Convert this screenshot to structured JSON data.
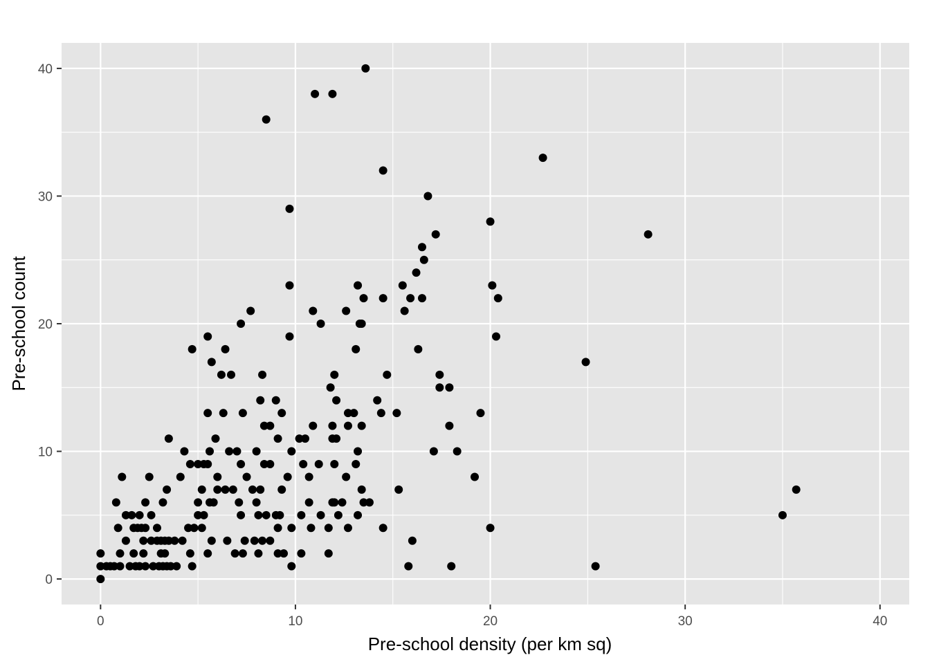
{
  "chart_data": {
    "type": "scatter",
    "xlabel": "Pre-school density (per km sq)",
    "ylabel": "Pre-school count",
    "xlim": [
      -2,
      41.5
    ],
    "ylim": [
      -2,
      42
    ],
    "x_ticks": [
      0,
      10,
      20,
      30,
      40
    ],
    "y_ticks": [
      0,
      10,
      20,
      30,
      40
    ],
    "x_tick_labels": [
      "0",
      "10",
      "20",
      "30",
      "40"
    ],
    "y_tick_labels": [
      "0",
      "10",
      "20",
      "30",
      "40"
    ],
    "grid": true,
    "legend": "none",
    "colors": {
      "panel": "#e5e5e5",
      "grid": "#ffffff",
      "point": "#000000"
    },
    "points": [
      [
        0,
        0
      ],
      [
        0,
        1
      ],
      [
        0,
        2
      ],
      [
        0.3,
        1
      ],
      [
        0.5,
        1
      ],
      [
        0.7,
        1
      ],
      [
        0.8,
        6
      ],
      [
        0.9,
        4
      ],
      [
        1,
        2
      ],
      [
        1,
        1
      ],
      [
        1.1,
        8
      ],
      [
        1.3,
        5
      ],
      [
        1.3,
        3
      ],
      [
        1.5,
        1
      ],
      [
        1.6,
        5
      ],
      [
        1.7,
        2
      ],
      [
        1.7,
        4
      ],
      [
        1.8,
        1
      ],
      [
        1.9,
        4
      ],
      [
        2,
        5
      ],
      [
        2,
        1
      ],
      [
        2.1,
        4
      ],
      [
        2.2,
        2
      ],
      [
        2.2,
        3
      ],
      [
        2.3,
        4
      ],
      [
        2.3,
        1
      ],
      [
        2.3,
        6
      ],
      [
        2.5,
        8
      ],
      [
        2.6,
        3
      ],
      [
        2.6,
        5
      ],
      [
        2.7,
        1
      ],
      [
        2.9,
        3
      ],
      [
        2.9,
        4
      ],
      [
        3,
        1
      ],
      [
        3.1,
        2
      ],
      [
        3.1,
        3
      ],
      [
        3.2,
        1
      ],
      [
        3.2,
        6
      ],
      [
        3.3,
        3
      ],
      [
        3.3,
        2
      ],
      [
        3.4,
        1
      ],
      [
        3.4,
        7
      ],
      [
        3.5,
        11
      ],
      [
        3.5,
        3
      ],
      [
        3.6,
        1
      ],
      [
        3.8,
        3
      ],
      [
        3.9,
        1
      ],
      [
        4.1,
        8
      ],
      [
        4.2,
        3
      ],
      [
        4.3,
        10
      ],
      [
        4.5,
        4
      ],
      [
        4.6,
        2
      ],
      [
        4.6,
        9
      ],
      [
        4.7,
        18
      ],
      [
        4.7,
        1
      ],
      [
        4.8,
        4
      ],
      [
        5,
        5
      ],
      [
        5,
        6
      ],
      [
        5,
        9
      ],
      [
        5.2,
        4
      ],
      [
        5.2,
        7
      ],
      [
        5.3,
        9
      ],
      [
        5.3,
        5
      ],
      [
        5.5,
        2
      ],
      [
        5.5,
        19
      ],
      [
        5.5,
        13
      ],
      [
        5.5,
        9
      ],
      [
        5.6,
        10
      ],
      [
        5.6,
        6
      ],
      [
        5.7,
        17
      ],
      [
        5.7,
        3
      ],
      [
        5.8,
        6
      ],
      [
        5.9,
        11
      ],
      [
        6,
        8
      ],
      [
        6,
        7
      ],
      [
        6.2,
        16
      ],
      [
        6.3,
        13
      ],
      [
        6.4,
        7
      ],
      [
        6.4,
        18
      ],
      [
        6.5,
        3
      ],
      [
        6.6,
        10
      ],
      [
        6.7,
        16
      ],
      [
        6.8,
        7
      ],
      [
        6.9,
        2
      ],
      [
        7,
        10
      ],
      [
        7.1,
        6
      ],
      [
        7.2,
        9
      ],
      [
        7.2,
        5
      ],
      [
        7.2,
        20
      ],
      [
        7.3,
        2
      ],
      [
        7.3,
        13
      ],
      [
        7.4,
        3
      ],
      [
        7.5,
        8
      ],
      [
        7.7,
        21
      ],
      [
        7.8,
        7
      ],
      [
        7.9,
        3
      ],
      [
        8,
        10
      ],
      [
        8,
        6
      ],
      [
        8.1,
        5
      ],
      [
        8.1,
        2
      ],
      [
        8.2,
        14
      ],
      [
        8.2,
        7
      ],
      [
        8.3,
        16
      ],
      [
        8.3,
        3
      ],
      [
        8.4,
        12
      ],
      [
        8.4,
        9
      ],
      [
        8.5,
        5
      ],
      [
        8.5,
        36
      ],
      [
        8.7,
        3
      ],
      [
        8.7,
        9
      ],
      [
        8.7,
        12
      ],
      [
        9,
        14
      ],
      [
        9,
        5
      ],
      [
        9.1,
        11
      ],
      [
        9.1,
        2
      ],
      [
        9.1,
        4
      ],
      [
        9.2,
        5
      ],
      [
        9.3,
        7
      ],
      [
        9.3,
        13
      ],
      [
        9.4,
        2
      ],
      [
        9.6,
        8
      ],
      [
        9.7,
        23
      ],
      [
        9.7,
        29
      ],
      [
        9.7,
        19
      ],
      [
        9.8,
        4
      ],
      [
        9.8,
        1
      ],
      [
        9.8,
        10
      ],
      [
        10.2,
        11
      ],
      [
        10.3,
        5
      ],
      [
        10.3,
        2
      ],
      [
        10.4,
        9
      ],
      [
        10.5,
        11
      ],
      [
        10.7,
        8
      ],
      [
        10.7,
        6
      ],
      [
        10.8,
        4
      ],
      [
        10.9,
        21
      ],
      [
        10.9,
        12
      ],
      [
        11,
        38
      ],
      [
        11.2,
        9
      ],
      [
        11.3,
        5
      ],
      [
        11.3,
        20
      ],
      [
        11.7,
        2
      ],
      [
        11.7,
        4
      ],
      [
        11.8,
        15
      ],
      [
        11.9,
        6
      ],
      [
        11.9,
        12
      ],
      [
        11.9,
        11
      ],
      [
        11.9,
        38
      ],
      [
        12,
        9
      ],
      [
        12,
        6
      ],
      [
        12,
        16
      ],
      [
        12.1,
        14
      ],
      [
        12.1,
        11
      ],
      [
        12.2,
        5
      ],
      [
        12.4,
        6
      ],
      [
        12.6,
        8
      ],
      [
        12.6,
        21
      ],
      [
        12.7,
        13
      ],
      [
        12.7,
        12
      ],
      [
        12.7,
        4
      ],
      [
        13,
        13
      ],
      [
        13.1,
        18
      ],
      [
        13.1,
        9
      ],
      [
        13.2,
        5
      ],
      [
        13.2,
        23
      ],
      [
        13.2,
        10
      ],
      [
        13.3,
        20
      ],
      [
        13.4,
        20
      ],
      [
        13.4,
        12
      ],
      [
        13.4,
        7
      ],
      [
        13.5,
        22
      ],
      [
        13.5,
        6
      ],
      [
        13.6,
        40
      ],
      [
        13.8,
        6
      ],
      [
        14.2,
        14
      ],
      [
        14.4,
        13
      ],
      [
        14.5,
        4
      ],
      [
        14.5,
        22
      ],
      [
        14.5,
        32
      ],
      [
        14.7,
        16
      ],
      [
        15.2,
        13
      ],
      [
        15.3,
        7
      ],
      [
        15.5,
        23
      ],
      [
        15.6,
        21
      ],
      [
        15.8,
        1
      ],
      [
        15.9,
        22
      ],
      [
        16,
        3
      ],
      [
        16.2,
        24
      ],
      [
        16.3,
        18
      ],
      [
        16.5,
        22
      ],
      [
        16.5,
        26
      ],
      [
        16.6,
        25
      ],
      [
        16.8,
        30
      ],
      [
        17.1,
        10
      ],
      [
        17.2,
        27
      ],
      [
        17.4,
        16
      ],
      [
        17.4,
        15
      ],
      [
        17.9,
        12
      ],
      [
        17.9,
        15
      ],
      [
        18,
        1
      ],
      [
        18.3,
        10
      ],
      [
        19.2,
        8
      ],
      [
        19.5,
        13
      ],
      [
        20,
        28
      ],
      [
        20,
        4
      ],
      [
        20.1,
        23
      ],
      [
        20.3,
        19
      ],
      [
        20.4,
        22
      ],
      [
        22.7,
        33
      ],
      [
        24.9,
        17
      ],
      [
        25.4,
        1
      ],
      [
        28.1,
        27
      ],
      [
        35,
        5
      ],
      [
        35.7,
        7
      ]
    ]
  }
}
